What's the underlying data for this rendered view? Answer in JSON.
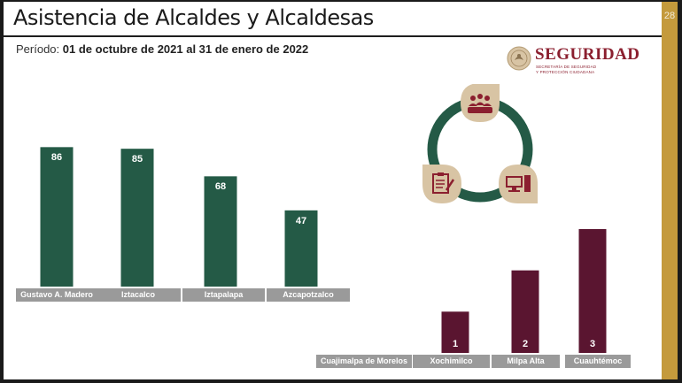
{
  "slide": {
    "title": "Asistencia de Alcaldes y Alcaldesas",
    "page_number": "28",
    "period_label": "Período:",
    "period_value": "01 de octubre de 2021 al 31 de enero de 2022"
  },
  "logo": {
    "title": "SEGURIDAD",
    "subtitle_line1": "SECRETARÍA DE SEGURIDAD",
    "subtitle_line2": "Y PROTECCIÓN CIUDADANA"
  },
  "cycle_icons": [
    "people-icon",
    "computer-icon",
    "checklist-icon"
  ],
  "colors": {
    "green": "#245a46",
    "maroon": "#5a1530",
    "gold": "#c49a3c",
    "tan": "#d8c4a4",
    "icon_maroon": "#8b1f2f",
    "label_gray": "#9a9a9a"
  },
  "chart_data": [
    {
      "type": "bar",
      "categories": [
        "Gustavo A. Madero",
        "Iztacalco",
        "Iztapalapa",
        "Azcapotzalco"
      ],
      "values": [
        86,
        85,
        68,
        47
      ],
      "value_labels": [
        "86",
        "85",
        "68",
        "47"
      ],
      "color": "#245a46",
      "ylim": [
        0,
        90
      ]
    },
    {
      "type": "bar",
      "categories": [
        "Cuajimalpa de Morelos",
        "Xochimilco",
        "Milpa Alta",
        "Cuauhtémoc"
      ],
      "values": [
        0,
        1,
        2,
        3
      ],
      "value_labels": [
        "",
        "1",
        "2",
        "3"
      ],
      "color": "#5a1530",
      "ylim": [
        0,
        3
      ]
    }
  ]
}
